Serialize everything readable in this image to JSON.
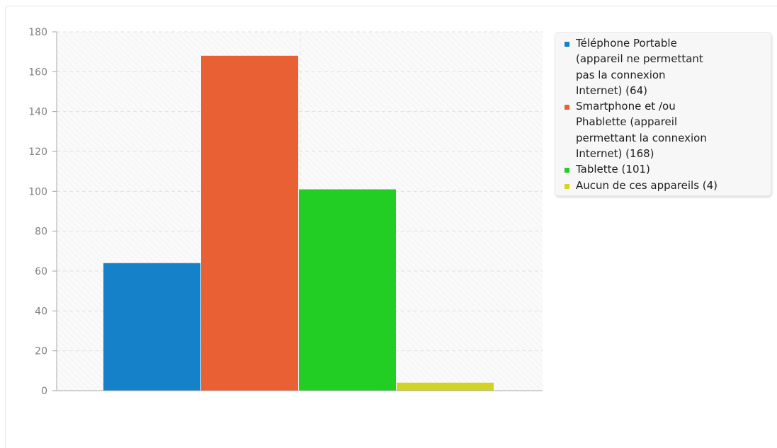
{
  "chart_data": {
    "type": "bar",
    "title": "",
    "xlabel": "",
    "ylabel": "",
    "ylim": [
      0,
      180
    ],
    "yticks": [
      0,
      20,
      40,
      60,
      80,
      100,
      120,
      140,
      160,
      180
    ],
    "grid": true,
    "legend_position": "right",
    "categories": [
      "Téléphone Portable (appareil ne permettant pas la connexion Internet) (64)",
      "Smartphone et /ou Phablette (appareil permettant la connexion Internet) (168)",
      "Tablette (101)",
      "Aucun de ces appareils (4)"
    ],
    "values": [
      64,
      168,
      101,
      4
    ],
    "colors": [
      "#1581c8",
      "#e96034",
      "#22ce24",
      "#d2d424"
    ]
  },
  "legend": {
    "items": [
      {
        "lines": [
          "Téléphone Portable",
          "(appareil ne permettant",
          "pas la connexion",
          "Internet) (64)"
        ],
        "color": "#1581c8"
      },
      {
        "lines": [
          "Smartphone et /ou",
          "Phablette (appareil",
          "permettant la connexion",
          "Internet) (168)"
        ],
        "color": "#e96034"
      },
      {
        "lines": [
          "Tablette (101)"
        ],
        "color": "#22ce24"
      },
      {
        "lines": [
          "Aucun de ces appareils (4)"
        ],
        "color": "#d2d424"
      }
    ]
  }
}
